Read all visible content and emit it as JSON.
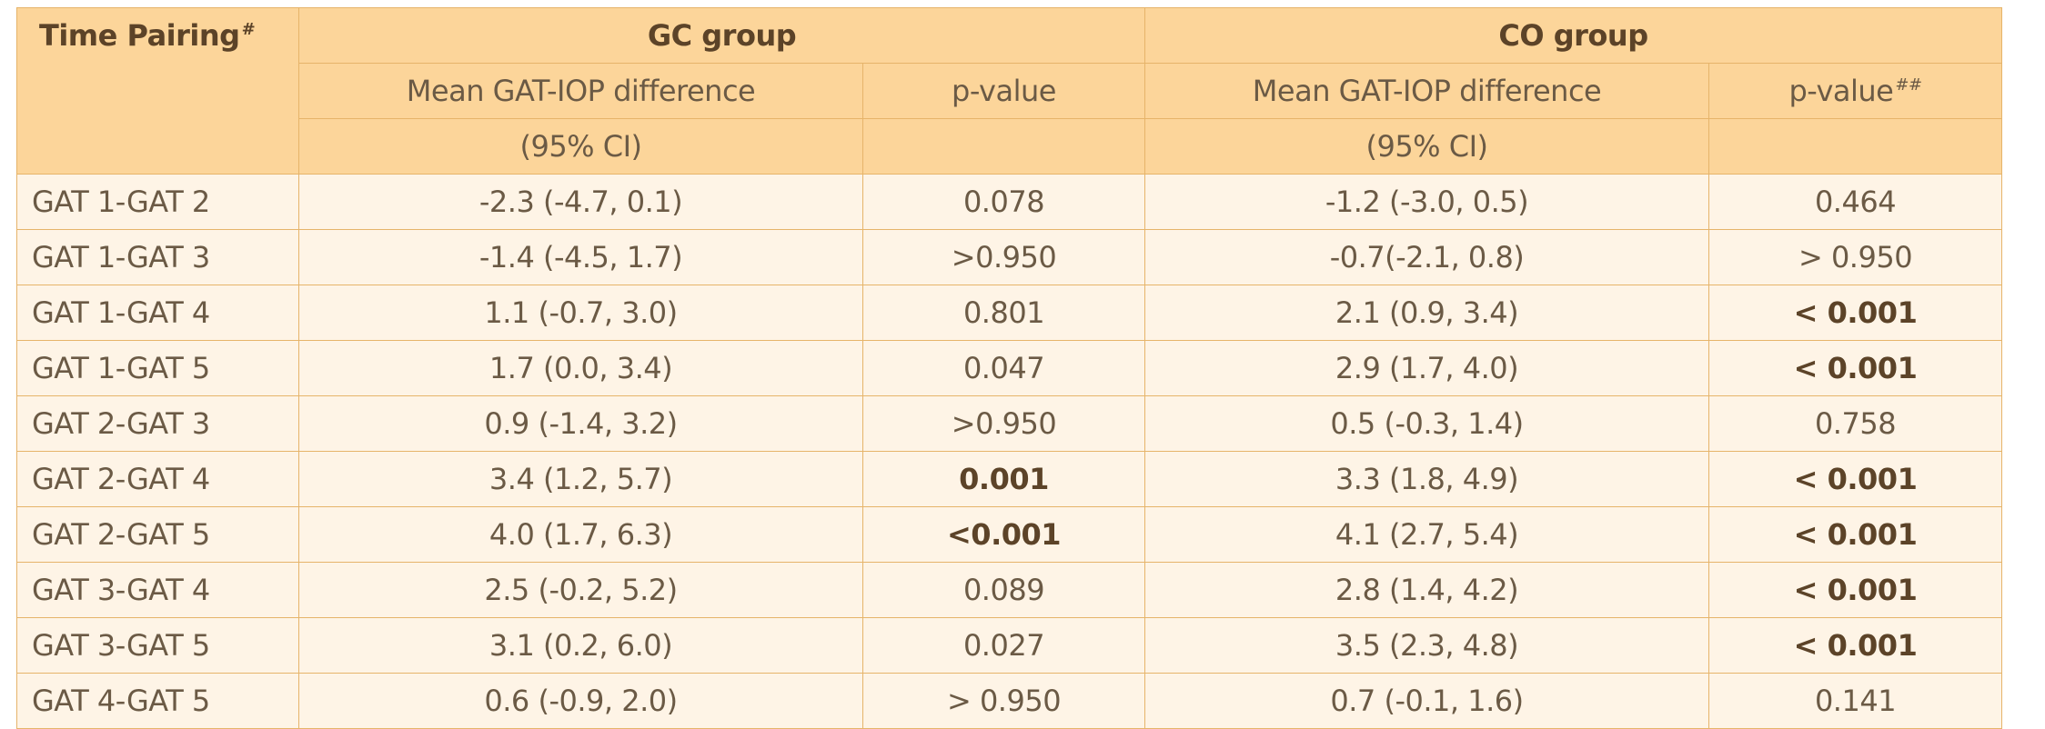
{
  "table": {
    "corner": {
      "label": "Time Pairing",
      "mark": "#"
    },
    "groups": [
      "GC group",
      "CO group"
    ],
    "subheaders": {
      "gc_mean": "Mean GAT-IOP difference",
      "gc_p": "p-value",
      "co_mean": "Mean GAT-IOP difference",
      "co_p": "p-value",
      "co_p_mark": "##"
    },
    "ci_labels": {
      "gc": "(95% CI)",
      "co": "(95% CI)"
    },
    "rows": [
      {
        "pair": "GAT 1-GAT 2",
        "gc_mean": "-2.3 (-4.7, 0.1)",
        "gc_p": "0.078",
        "co_mean": "-1.2 (-3.0, 0.5)",
        "co_p": "0.464"
      },
      {
        "pair": "GAT 1-GAT 3",
        "gc_mean": "-1.4 (-4.5, 1.7)",
        "gc_p": ">0.950",
        "co_mean": "-0.7(-2.1, 0.8)",
        "co_p": "> 0.950"
      },
      {
        "pair": "GAT 1-GAT 4",
        "gc_mean": "1.1 (-0.7, 3.0)",
        "gc_p": "0.801",
        "co_mean": "2.1 (0.9, 3.4)",
        "co_p": "< 0.001"
      },
      {
        "pair": "GAT 1-GAT 5",
        "gc_mean": "1.7 (0.0, 3.4)",
        "gc_p": "0.047",
        "co_mean": "2.9 (1.7, 4.0)",
        "co_p": "< 0.001"
      },
      {
        "pair": "GAT 2-GAT 3",
        "gc_mean": "0.9 (-1.4, 3.2)",
        "gc_p": ">0.950",
        "co_mean": "0.5 (-0.3, 1.4)",
        "co_p": "0.758"
      },
      {
        "pair": "GAT 2-GAT 4",
        "gc_mean": "3.4 (1.2, 5.7)",
        "gc_p": "0.001",
        "co_mean": "3.3 (1.8, 4.9)",
        "co_p": "< 0.001"
      },
      {
        "pair": "GAT 2-GAT 5",
        "gc_mean": "4.0 (1.7, 6.3)",
        "gc_p": "<0.001",
        "co_mean": "4.1 (2.7, 5.4)",
        "co_p": "< 0.001"
      },
      {
        "pair": "GAT 3-GAT 4",
        "gc_mean": "2.5 (-0.2, 5.2)",
        "gc_p": "0.089",
        "co_mean": "2.8 (1.4, 4.2)",
        "co_p": "< 0.001"
      },
      {
        "pair": "GAT 3-GAT 5",
        "gc_mean": "3.1 (0.2, 6.0)",
        "gc_p": "0.027",
        "co_mean": "3.5 (2.3, 4.8)",
        "co_p": "< 0.001"
      },
      {
        "pair": "GAT 4-GAT 5",
        "gc_mean": "0.6 (-0.9, 2.0)",
        "gc_p": "> 0.950",
        "co_mean": "0.7 (-0.1, 1.6)",
        "co_p": "0.141"
      }
    ]
  }
}
